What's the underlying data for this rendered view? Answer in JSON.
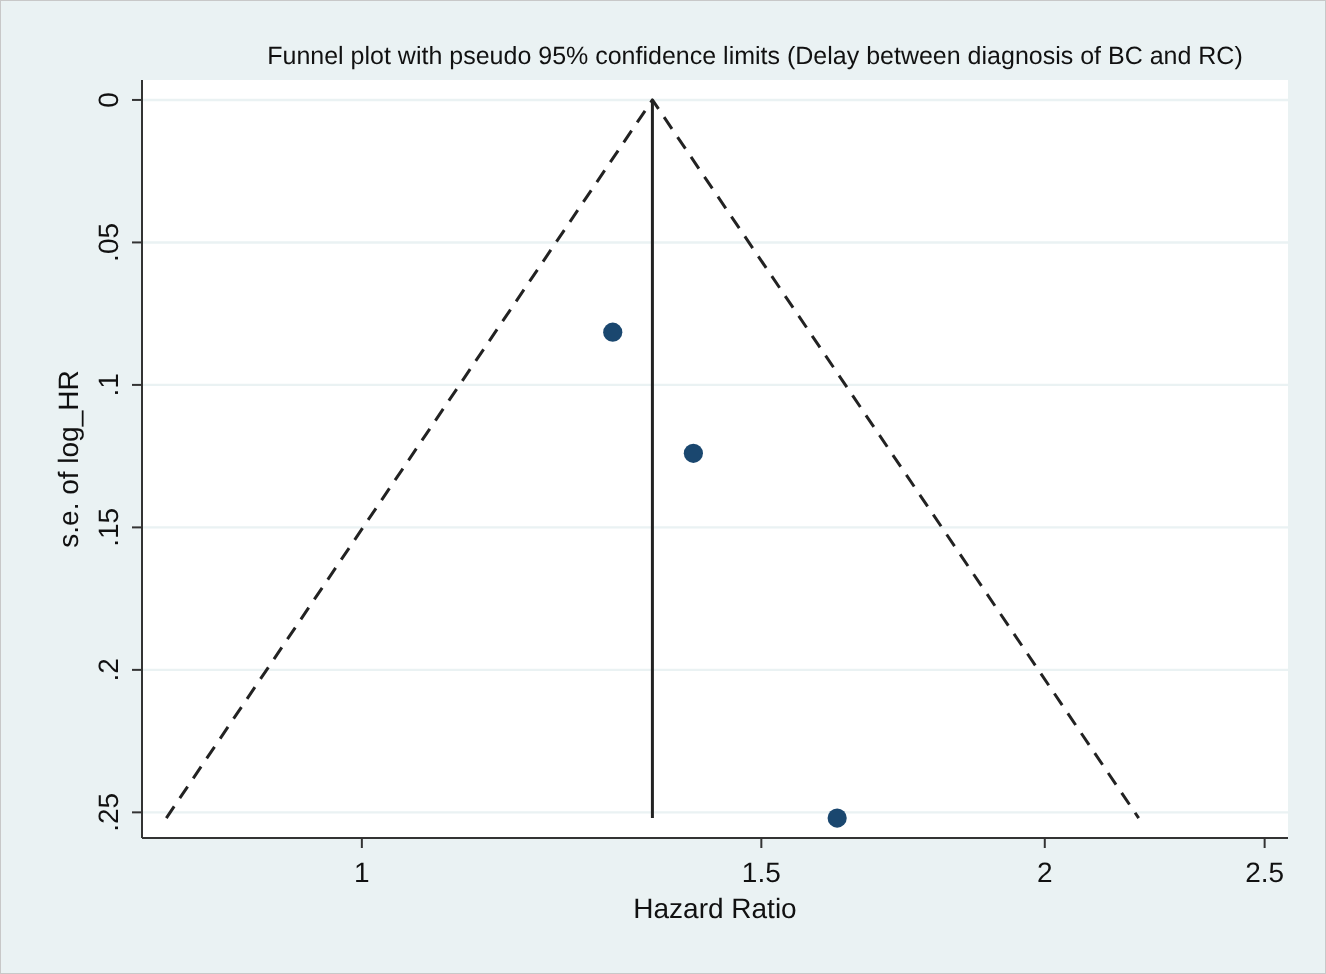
{
  "chart_data": {
    "type": "scatter",
    "title": "Funnel plot with pseudo 95% confidence limits (Delay between diagnosis of BC and RC)",
    "xlabel": "Hazard Ratio",
    "ylabel": "s.e. of log_HR",
    "log": "x",
    "xlim": [
      0.8,
      2.56
    ],
    "xticks": [
      1,
      1.5,
      2,
      2.5
    ],
    "ylim": [
      0.259,
      -0.007
    ],
    "yticks": [
      0,
      {
        "value": 0.05,
        "label": ".05"
      },
      {
        "value": 0.1,
        "label": ".1"
      },
      {
        "value": 0.15,
        "label": ".15"
      },
      {
        "value": 0.2,
        "label": ".2"
      },
      {
        "value": 0.25,
        "label": ".25"
      }
    ],
    "grid": "y",
    "series": [
      {
        "type": "line",
        "color": "#222222",
        "line_style": "dashed",
        "marker": "none",
        "x": [
          0.82,
          1.343,
          2.2
        ],
        "values": [
          0.252,
          0,
          0.252
        ]
      },
      {
        "type": "line",
        "color": "#222222",
        "line_style": "solid",
        "marker": "none",
        "x": [
          1.343,
          1.343
        ],
        "values": [
          0,
          0.252
        ]
      },
      {
        "color": "#1a476f",
        "marker": "circle",
        "x": [
          1.29,
          1.4,
          1.62
        ],
        "values": [
          0.0815,
          0.124,
          0.252
        ]
      }
    ]
  }
}
